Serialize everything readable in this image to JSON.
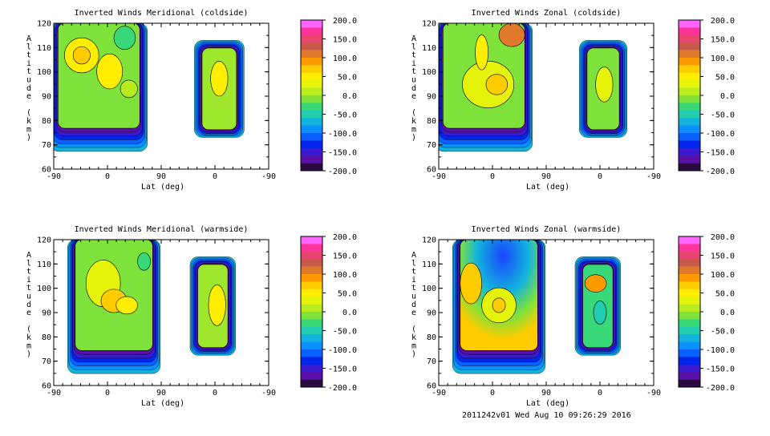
{
  "footer": "2011242v01 Wed Aug 10 09:26:29 2016",
  "colorbar": {
    "labels": [
      "200.0",
      "150.0",
      "100.0",
      "50.0",
      "0.0",
      "-50.0",
      "-100.0",
      "-150.0",
      "-200.0"
    ],
    "colors": [
      "#ff66ff",
      "#ff3399",
      "#e8456e",
      "#c85a4a",
      "#e07a2a",
      "#ff9900",
      "#ffcc00",
      "#ffee00",
      "#e5f20a",
      "#b8ec1e",
      "#7fe23a",
      "#39d97a",
      "#22ccb0",
      "#12b4dd",
      "#0a90ff",
      "#0a5fff",
      "#0026ee",
      "#3a1ad0",
      "#5a10a8",
      "#2a0a40"
    ]
  },
  "chart_data": [
    {
      "type": "heatmap",
      "title": "Inverted Winds Meridional (coldside)",
      "xlabel": "Lat (deg)",
      "ylabel": "Altitude (km)",
      "xticks": [
        "-90",
        "0",
        "90",
        "0",
        "-90"
      ],
      "yticks": [
        "120",
        "110",
        "100",
        "90",
        "80",
        "70",
        "60"
      ],
      "ylim": [
        60,
        120
      ],
      "colorbar_range": [
        -200,
        200
      ]
    },
    {
      "type": "heatmap",
      "title": "Inverted Winds Zonal (coldside)",
      "xlabel": "Lat (deg)",
      "ylabel": "Altitude (km)",
      "xticks": [
        "-90",
        "0",
        "90",
        "0",
        "-90"
      ],
      "yticks": [
        "120",
        "110",
        "100",
        "90",
        "80",
        "70",
        "60"
      ],
      "ylim": [
        60,
        120
      ],
      "colorbar_range": [
        -200,
        200
      ]
    },
    {
      "type": "heatmap",
      "title": "Inverted Winds Meridional (warmside)",
      "xlabel": "Lat (deg)",
      "ylabel": "Altitude (km)",
      "xticks": [
        "-90",
        "0",
        "90",
        "0",
        "-90"
      ],
      "yticks": [
        "120",
        "110",
        "100",
        "90",
        "80",
        "70",
        "60"
      ],
      "ylim": [
        60,
        120
      ],
      "colorbar_range": [
        -200,
        200
      ]
    },
    {
      "type": "heatmap",
      "title": "Inverted Winds Zonal (warmside)",
      "xlabel": "Lat (deg)",
      "ylabel": "Altitude (km)",
      "xticks": [
        "-90",
        "0",
        "90",
        "0",
        "-90"
      ],
      "yticks": [
        "120",
        "110",
        "100",
        "90",
        "80",
        "70",
        "60"
      ],
      "ylim": [
        60,
        120
      ],
      "colorbar_range": [
        -200,
        200
      ]
    }
  ]
}
